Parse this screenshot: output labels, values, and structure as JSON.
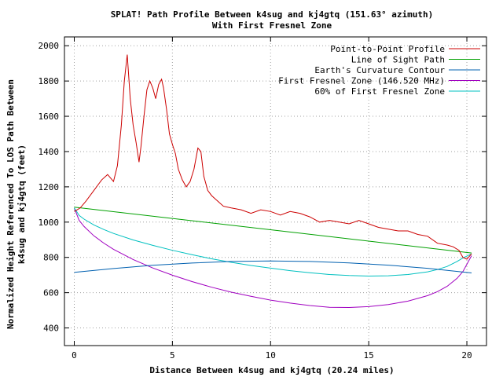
{
  "chart_data": {
    "type": "line",
    "title": "SPLAT! Path Profile Between k4sug and kj4gtq (151.63° azimuth)",
    "subtitle": "With First Fresnel Zone",
    "xlabel": "Distance Between k4sug and kj4gtq (20.24 miles)",
    "ylabel_line1": "Normalized Height Referenced To LOS Path Between",
    "ylabel_line2": "k4sug and kj4gtq (feet)",
    "xlim": [
      -0.5,
      21
    ],
    "ylim": [
      300,
      2050
    ],
    "xticks": [
      0,
      5,
      10,
      15,
      20
    ],
    "yticks": [
      400,
      600,
      800,
      1000,
      1200,
      1400,
      1600,
      1800,
      2000
    ],
    "grid": true,
    "legend_position": "top-right",
    "series": [
      {
        "name": "Point-to-Point Profile",
        "color": "#cc0000",
        "x": [
          0,
          0.3,
          0.6,
          1.0,
          1.4,
          1.7,
          2.0,
          2.2,
          2.4,
          2.55,
          2.7,
          2.85,
          3.0,
          3.15,
          3.3,
          3.4,
          3.55,
          3.7,
          3.85,
          4.0,
          4.15,
          4.3,
          4.45,
          4.55,
          4.7,
          4.85,
          5.0,
          5.15,
          5.3,
          5.5,
          5.7,
          5.9,
          6.1,
          6.3,
          6.45,
          6.6,
          6.8,
          7.0,
          7.3,
          7.6,
          8.0,
          8.5,
          9.0,
          9.5,
          10.0,
          10.5,
          11.0,
          11.5,
          12.0,
          12.5,
          13.0,
          13.5,
          14.0,
          14.5,
          15.0,
          15.5,
          16.0,
          16.5,
          17.0,
          17.5,
          18.0,
          18.5,
          19.0,
          19.3,
          19.6,
          19.8,
          20.0,
          20.24
        ],
        "y": [
          1060,
          1080,
          1120,
          1180,
          1240,
          1270,
          1230,
          1320,
          1550,
          1800,
          1950,
          1700,
          1550,
          1450,
          1340,
          1430,
          1600,
          1750,
          1800,
          1760,
          1700,
          1780,
          1810,
          1760,
          1640,
          1500,
          1440,
          1390,
          1300,
          1240,
          1200,
          1230,
          1300,
          1420,
          1400,
          1260,
          1180,
          1150,
          1120,
          1090,
          1080,
          1070,
          1050,
          1070,
          1060,
          1040,
          1060,
          1050,
          1030,
          1000,
          1010,
          1000,
          990,
          1010,
          990,
          970,
          960,
          950,
          950,
          930,
          920,
          880,
          870,
          860,
          840,
          800,
          790,
          820
        ]
      },
      {
        "name": "Line of Sight Path",
        "color": "#00a000",
        "x": [
          0,
          20.24
        ],
        "y": [
          1085,
          825
        ]
      },
      {
        "name": "Earth's Curvature Contour",
        "color": "#0060b0",
        "x": [
          0,
          2,
          4,
          6,
          8,
          10,
          12,
          14,
          16,
          18,
          20.24
        ],
        "y": [
          715,
          737,
          755,
          768,
          777,
          780,
          777,
          769,
          756,
          738,
          712
        ]
      },
      {
        "name": "First Fresnel Zone (146.520 MHz)",
        "color": "#a000c0",
        "x": [
          0,
          0.25,
          0.5,
          1,
          1.5,
          2,
          3,
          4,
          5,
          6,
          7,
          8,
          9,
          10,
          11,
          12,
          13,
          14,
          15,
          16,
          17,
          18,
          18.5,
          19,
          19.5,
          19.8,
          20.24
        ],
        "y": [
          1080,
          1010,
          975,
          922,
          881,
          846,
          788,
          740,
          699,
          663,
          631,
          603,
          579,
          558,
          541,
          527,
          517,
          516,
          521,
          533,
          552,
          583,
          606,
          636,
          681,
          720,
          810
        ]
      },
      {
        "name": "60% of First Fresnel Zone",
        "color": "#00c0c0",
        "x": [
          0,
          0.25,
          0.5,
          1,
          1.5,
          2,
          3,
          4,
          5,
          6,
          7,
          8,
          9,
          10,
          11,
          12,
          13,
          14,
          15,
          16,
          17,
          18,
          18.5,
          19,
          19.5,
          19.8,
          20.24
        ],
        "y": [
          1080,
          1038,
          1017,
          984,
          958,
          936,
          899,
          868,
          840,
          815,
          792,
          772,
          754,
          739,
          725,
          713,
          703,
          697,
          694,
          696,
          703,
          718,
          731,
          749,
          777,
          797,
          820
        ]
      }
    ]
  }
}
